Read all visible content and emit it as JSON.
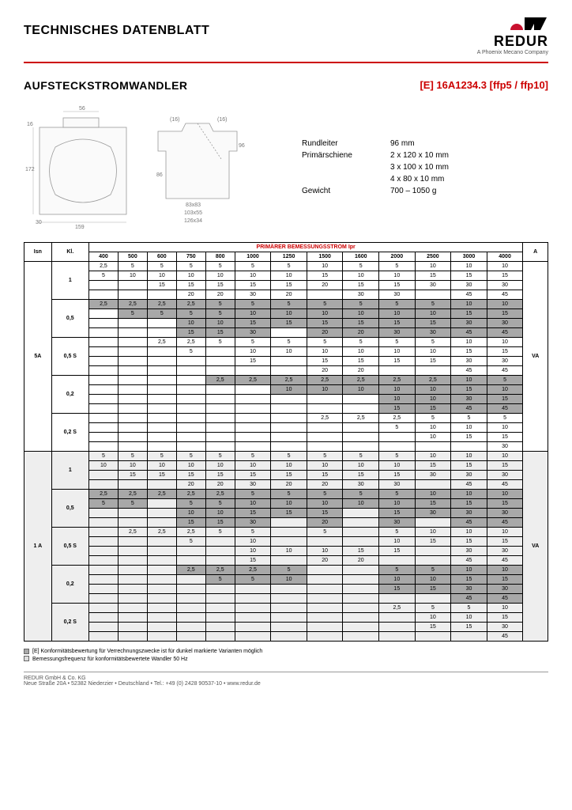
{
  "header": {
    "title": "TECHNISCHES DATENBLATT",
    "logo_text": "REDUR",
    "logo_sub": "A Phoenix Mecano Company",
    "logo_colors": {
      "red": "#c8102e",
      "black": "#000000"
    }
  },
  "product": {
    "title": "AUFSTECKSTROMWANDLER",
    "code": "[E] 16A1234.3 [ffp5 / ffp10]"
  },
  "drawing_dims": {
    "d56": "56",
    "d16": "16",
    "d172": "172",
    "d159": "159",
    "d30": "30",
    "d16p": "(16)",
    "d86": "86",
    "d96": "96",
    "d83x83": "83x83",
    "d103x55": "103x55",
    "d126x34": "126x34"
  },
  "specs": {
    "rundleiter_label": "Rundleiter",
    "rundleiter_value": "96 mm",
    "primarschiene_label": "Primärschiene",
    "primarschiene_v1": "2 x 120 x 10 mm",
    "primarschiene_v2": "3 x 100 x 10 mm",
    "primarschiene_v3": "4 x 80 x 10 mm",
    "gewicht_label": "Gewicht",
    "gewicht_value": "700 – 1050 g"
  },
  "table": {
    "main_header": "PRIMÄRER BEMESSUNGSSTROM Ipr",
    "col_isn": "Isn",
    "col_kl": "Kl.",
    "col_a": "A",
    "col_va": "VA",
    "ratings": [
      "400",
      "500",
      "600",
      "750",
      "800",
      "1000",
      "1250",
      "1500",
      "1600",
      "2000",
      "2500",
      "3000",
      "4000"
    ],
    "isn_5a": "5A",
    "isn_1a": "1 A",
    "kl_values": [
      "1",
      "0,5",
      "0,5 S",
      "0,2",
      "0,2 S"
    ],
    "groups": [
      {
        "isn": "5A",
        "alt": false,
        "kl": [
          {
            "k": "1",
            "rows": [
              {
                "grey": false,
                "c": [
                  "2,5",
                  "5",
                  "5",
                  "5",
                  "5",
                  "5",
                  "5",
                  "10",
                  "5",
                  "5",
                  "10",
                  "10",
                  "10"
                ]
              },
              {
                "grey": false,
                "c": [
                  "5",
                  "10",
                  "10",
                  "10",
                  "10",
                  "10",
                  "10",
                  "15",
                  "10",
                  "10",
                  "15",
                  "15",
                  "15"
                ]
              },
              {
                "grey": false,
                "c": [
                  "",
                  "",
                  "15",
                  "15",
                  "15",
                  "15",
                  "15",
                  "20",
                  "15",
                  "15",
                  "30",
                  "30",
                  "30"
                ]
              },
              {
                "grey": false,
                "c": [
                  "",
                  "",
                  "",
                  "20",
                  "20",
                  "30",
                  "20",
                  "",
                  "30",
                  "30",
                  "",
                  "45",
                  "45"
                ]
              }
            ]
          },
          {
            "k": "0,5",
            "rows": [
              {
                "grey": true,
                "c": [
                  "2,5",
                  "2,5",
                  "2,5",
                  "2,5",
                  "5",
                  "5",
                  "5",
                  "5",
                  "5",
                  "5",
                  "5",
                  "10",
                  "10"
                ]
              },
              {
                "grey": true,
                "c": [
                  "",
                  "5",
                  "5",
                  "5",
                  "5",
                  "10",
                  "10",
                  "10",
                  "10",
                  "10",
                  "10",
                  "15",
                  "15"
                ]
              },
              {
                "grey": true,
                "c": [
                  "",
                  "",
                  "",
                  "10",
                  "10",
                  "15",
                  "15",
                  "15",
                  "15",
                  "15",
                  "15",
                  "30",
                  "30"
                ]
              },
              {
                "grey": true,
                "c": [
                  "",
                  "",
                  "",
                  "15",
                  "15",
                  "30",
                  "",
                  "20",
                  "20",
                  "30",
                  "30",
                  "45",
                  "45"
                ]
              }
            ]
          },
          {
            "k": "0,5 S",
            "rows": [
              {
                "grey": false,
                "c": [
                  "",
                  "",
                  "2,5",
                  "2,5",
                  "5",
                  "5",
                  "5",
                  "5",
                  "5",
                  "5",
                  "5",
                  "10",
                  "10"
                ]
              },
              {
                "grey": false,
                "c": [
                  "",
                  "",
                  "",
                  "5",
                  "",
                  "10",
                  "10",
                  "10",
                  "10",
                  "10",
                  "10",
                  "15",
                  "15"
                ]
              },
              {
                "grey": false,
                "c": [
                  "",
                  "",
                  "",
                  "",
                  "",
                  "15",
                  "",
                  "15",
                  "15",
                  "15",
                  "15",
                  "30",
                  "30"
                ]
              },
              {
                "grey": false,
                "c": [
                  "",
                  "",
                  "",
                  "",
                  "",
                  "",
                  "",
                  "20",
                  "20",
                  "",
                  "",
                  "45",
                  "45"
                ]
              }
            ]
          },
          {
            "k": "0,2",
            "rows": [
              {
                "grey": true,
                "c": [
                  "",
                  "",
                  "",
                  "",
                  "2,5",
                  "2,5",
                  "2,5",
                  "2,5",
                  "2,5",
                  "2,5",
                  "2,5",
                  "10",
                  "5"
                ]
              },
              {
                "grey": true,
                "c": [
                  "",
                  "",
                  "",
                  "",
                  "",
                  "",
                  "10",
                  "10",
                  "10",
                  "10",
                  "10",
                  "15",
                  "10"
                ]
              },
              {
                "grey": true,
                "c": [
                  "",
                  "",
                  "",
                  "",
                  "",
                  "",
                  "",
                  "",
                  "",
                  "10",
                  "10",
                  "30",
                  "15"
                ]
              },
              {
                "grey": true,
                "c": [
                  "",
                  "",
                  "",
                  "",
                  "",
                  "",
                  "",
                  "",
                  "",
                  "15",
                  "15",
                  "45",
                  "45"
                ]
              }
            ]
          },
          {
            "k": "0,2 S",
            "rows": [
              {
                "grey": false,
                "c": [
                  "",
                  "",
                  "",
                  "",
                  "",
                  "",
                  "",
                  "2,5",
                  "2,5",
                  "2,5",
                  "5",
                  "5",
                  "5"
                ]
              },
              {
                "grey": false,
                "c": [
                  "",
                  "",
                  "",
                  "",
                  "",
                  "",
                  "",
                  "",
                  "",
                  "5",
                  "10",
                  "10",
                  "10"
                ]
              },
              {
                "grey": false,
                "c": [
                  "",
                  "",
                  "",
                  "",
                  "",
                  "",
                  "",
                  "",
                  "",
                  "",
                  "10",
                  "15",
                  "15"
                ]
              },
              {
                "grey": false,
                "c": [
                  "",
                  "",
                  "",
                  "",
                  "",
                  "",
                  "",
                  "",
                  "",
                  "",
                  "",
                  "",
                  "30"
                ]
              }
            ]
          }
        ]
      },
      {
        "isn": "1 A",
        "alt": true,
        "kl": [
          {
            "k": "1",
            "rows": [
              {
                "grey": false,
                "c": [
                  "5",
                  "5",
                  "5",
                  "5",
                  "5",
                  "5",
                  "5",
                  "5",
                  "5",
                  "5",
                  "10",
                  "10",
                  "10"
                ]
              },
              {
                "grey": false,
                "c": [
                  "10",
                  "10",
                  "10",
                  "10",
                  "10",
                  "10",
                  "10",
                  "10",
                  "10",
                  "10",
                  "15",
                  "15",
                  "15"
                ]
              },
              {
                "grey": false,
                "c": [
                  "",
                  "15",
                  "15",
                  "15",
                  "15",
                  "15",
                  "15",
                  "15",
                  "15",
                  "15",
                  "30",
                  "30",
                  "30"
                ]
              },
              {
                "grey": false,
                "c": [
                  "",
                  "",
                  "",
                  "20",
                  "20",
                  "30",
                  "20",
                  "20",
                  "30",
                  "30",
                  "",
                  "45",
                  "45"
                ]
              }
            ]
          },
          {
            "k": "0,5",
            "rows": [
              {
                "grey": true,
                "c": [
                  "2,5",
                  "2,5",
                  "2,5",
                  "2,5",
                  "2,5",
                  "5",
                  "5",
                  "5",
                  "5",
                  "5",
                  "10",
                  "10",
                  "10"
                ]
              },
              {
                "grey": true,
                "c": [
                  "5",
                  "5",
                  "",
                  "5",
                  "5",
                  "10",
                  "10",
                  "10",
                  "10",
                  "10",
                  "15",
                  "15",
                  "15"
                ]
              },
              {
                "grey": true,
                "c": [
                  "",
                  "",
                  "",
                  "10",
                  "10",
                  "15",
                  "15",
                  "15",
                  "",
                  "15",
                  "30",
                  "30",
                  "30"
                ]
              },
              {
                "grey": true,
                "c": [
                  "",
                  "",
                  "",
                  "15",
                  "15",
                  "30",
                  "",
                  "20",
                  "",
                  "30",
                  "",
                  "45",
                  "45"
                ]
              }
            ]
          },
          {
            "k": "0,5 S",
            "rows": [
              {
                "grey": false,
                "c": [
                  "",
                  "2,5",
                  "2,5",
                  "2,5",
                  "5",
                  "5",
                  "",
                  "5",
                  "",
                  "5",
                  "10",
                  "10",
                  "10"
                ]
              },
              {
                "grey": false,
                "c": [
                  "",
                  "",
                  "",
                  "5",
                  "",
                  "10",
                  "",
                  "",
                  "",
                  "10",
                  "15",
                  "15",
                  "15"
                ]
              },
              {
                "grey": false,
                "c": [
                  "",
                  "",
                  "",
                  "",
                  "",
                  "10",
                  "10",
                  "10",
                  "15",
                  "15",
                  "",
                  "30",
                  "30"
                ]
              },
              {
                "grey": false,
                "c": [
                  "",
                  "",
                  "",
                  "",
                  "",
                  "15",
                  "",
                  "20",
                  "20",
                  "",
                  "",
                  "45",
                  "45"
                ]
              }
            ]
          },
          {
            "k": "0,2",
            "rows": [
              {
                "grey": true,
                "c": [
                  "",
                  "",
                  "",
                  "2,5",
                  "2,5",
                  "2,5",
                  "5",
                  "",
                  "",
                  "5",
                  "5",
                  "10",
                  "10"
                ]
              },
              {
                "grey": true,
                "c": [
                  "",
                  "",
                  "",
                  "",
                  "5",
                  "5",
                  "10",
                  "",
                  "",
                  "10",
                  "10",
                  "15",
                  "15"
                ]
              },
              {
                "grey": true,
                "c": [
                  "",
                  "",
                  "",
                  "",
                  "",
                  "",
                  "",
                  "",
                  "",
                  "15",
                  "15",
                  "30",
                  "30"
                ]
              },
              {
                "grey": true,
                "c": [
                  "",
                  "",
                  "",
                  "",
                  "",
                  "",
                  "",
                  "",
                  "",
                  "",
                  "",
                  "45",
                  "45"
                ]
              }
            ]
          },
          {
            "k": "0,2 S",
            "rows": [
              {
                "grey": false,
                "c": [
                  "",
                  "",
                  "",
                  "",
                  "",
                  "",
                  "",
                  "",
                  "",
                  "2,5",
                  "5",
                  "5",
                  "10"
                ]
              },
              {
                "grey": false,
                "c": [
                  "",
                  "",
                  "",
                  "",
                  "",
                  "",
                  "",
                  "",
                  "",
                  "",
                  "10",
                  "10",
                  "15"
                ]
              },
              {
                "grey": false,
                "c": [
                  "",
                  "",
                  "",
                  "",
                  "",
                  "",
                  "",
                  "",
                  "",
                  "",
                  "15",
                  "15",
                  "30"
                ]
              },
              {
                "grey": false,
                "c": [
                  "",
                  "",
                  "",
                  "",
                  "",
                  "",
                  "",
                  "",
                  "",
                  "",
                  "",
                  "",
                  "45"
                ]
              }
            ]
          }
        ]
      }
    ]
  },
  "notes": {
    "n1": "[E] Konformitätsbewertung für Verrechnungszwecke ist für dunkel markierte Varianten möglich",
    "n2": "Bemessungsfrequenz für konformitätsbewertete Wandler 50 Hz"
  },
  "footer": {
    "company": "REDUR GmbH & Co. KG",
    "address": "Neue Straße 20A • 52382 Niederzier • Deutschland • Tel.: +49 (0) 2428 90537-10 • www.redur.de"
  },
  "colors": {
    "accent_red": "#c8102e",
    "grid_black": "#000000",
    "grey_cell": "#a8a8a8",
    "alt_bg": "#eeeeee"
  }
}
